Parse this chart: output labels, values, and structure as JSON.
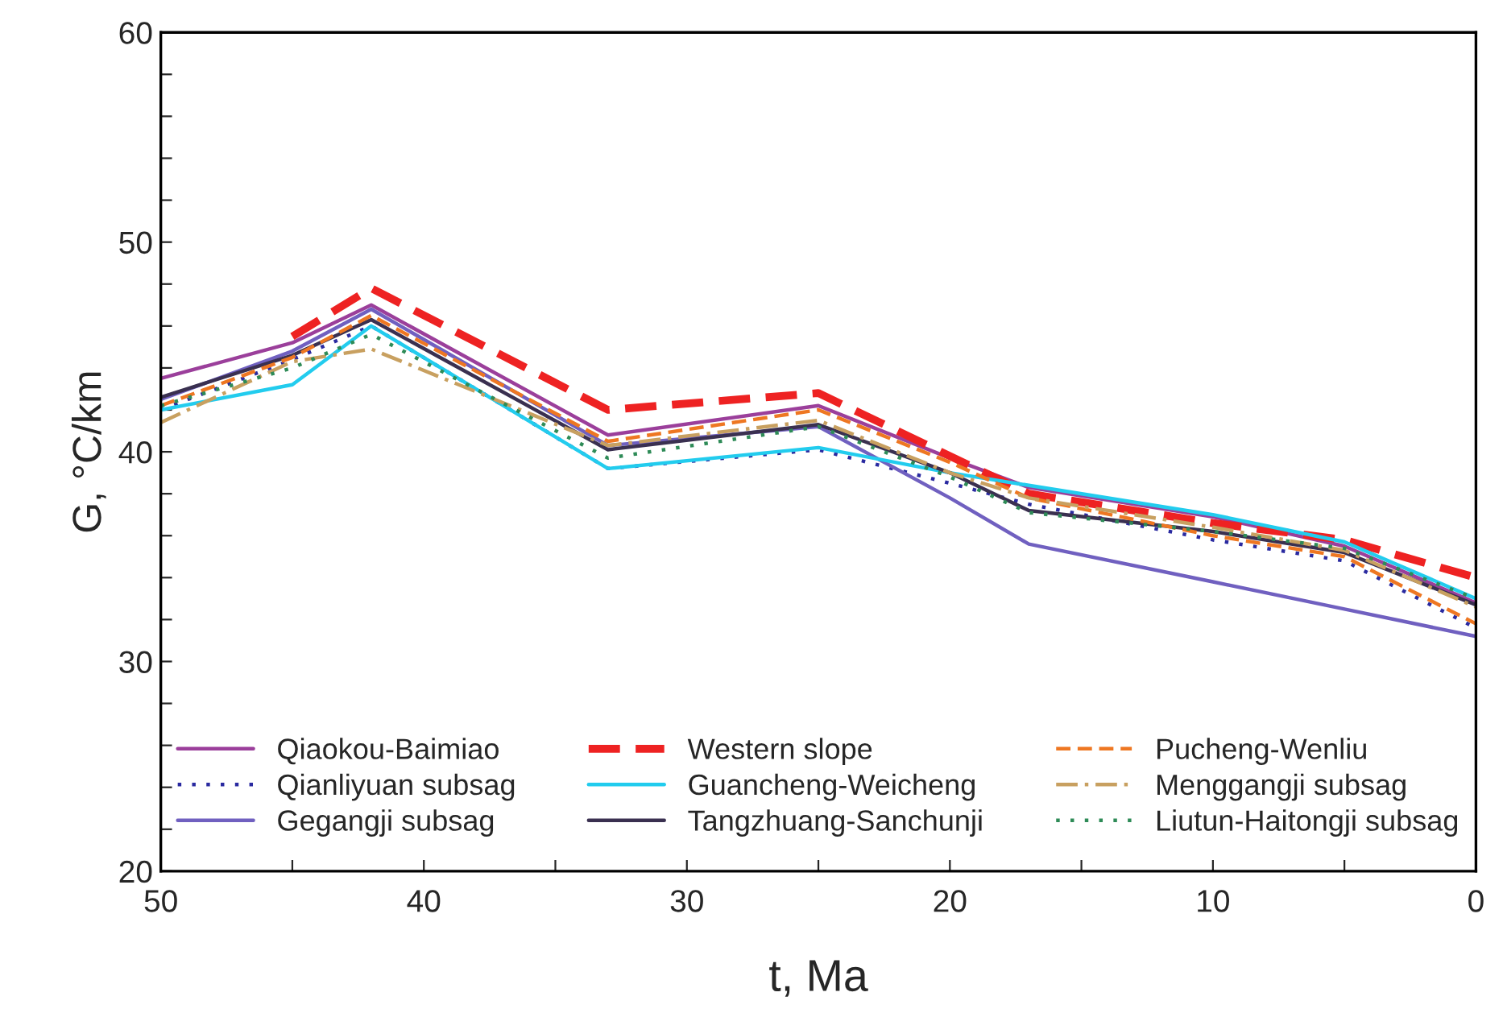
{
  "chart_data": {
    "type": "line",
    "xlabel": "t, Ma",
    "ylabel": "G, °C/km",
    "x": [
      50,
      45,
      42,
      33,
      25,
      20,
      17,
      10,
      5,
      0
    ],
    "xlim": [
      50,
      0
    ],
    "ylim": [
      20,
      60
    ],
    "xticks": [
      50,
      {
        "value": 45,
        "label": null
      },
      40,
      {
        "value": 35,
        "label": null
      },
      30,
      {
        "value": 25,
        "label": null
      },
      20,
      {
        "value": 15,
        "label": null
      },
      10,
      {
        "value": 5,
        "label": null
      },
      0
    ],
    "yticks": [
      20,
      {
        "value": 22,
        "label": null
      },
      {
        "value": 24,
        "label": null
      },
      {
        "value": 26,
        "label": null
      },
      {
        "value": 28,
        "label": null
      },
      30,
      {
        "value": 32,
        "label": null
      },
      {
        "value": 34,
        "label": null
      },
      {
        "value": 36,
        "label": null
      },
      {
        "value": 38,
        "label": null
      },
      40,
      {
        "value": 42,
        "label": null
      },
      {
        "value": 44,
        "label": null
      },
      {
        "value": 46,
        "label": null
      },
      {
        "value": 48,
        "label": null
      },
      50,
      {
        "value": 52,
        "label": null
      },
      {
        "value": 54,
        "label": null
      },
      {
        "value": 56,
        "label": null
      },
      {
        "value": 58,
        "label": null
      },
      60
    ],
    "grid": false,
    "legend": "bottom",
    "marker": "none",
    "series": [
      {
        "name": "Qiaokou-Baimiao",
        "color": "#9b3f9b",
        "line_style": "solid",
        "values": [
          43.5,
          45.2,
          47.0,
          40.8,
          42.2,
          39.7,
          38.3,
          36.9,
          35.5,
          32.8
        ]
      },
      {
        "name": "Qianliyuan subsag",
        "color": "#2a2aa0",
        "line_style": "dotted",
        "values": [
          42.0,
          44.4,
          46.0,
          39.2,
          40.1,
          38.5,
          37.5,
          35.8,
          34.8,
          31.6
        ]
      },
      {
        "name": "Gegangji subsag",
        "color": "#7060c0",
        "line_style": "solid",
        "values": [
          42.5,
          44.8,
          46.8,
          40.3,
          41.2,
          37.8,
          35.6,
          33.8,
          32.5,
          31.2
        ]
      },
      {
        "name": "Western slope",
        "color": "#ee2222",
        "line_style": "dashed",
        "values": [
          null,
          45.5,
          47.8,
          42.0,
          42.8,
          39.8,
          38.0,
          36.6,
          35.8,
          34.0
        ]
      },
      {
        "name": "Guancheng-Weicheng",
        "color": "#22ccee",
        "line_style": "solid",
        "values": [
          42.0,
          43.2,
          46.0,
          39.2,
          40.2,
          39.0,
          38.4,
          37.0,
          35.7,
          33.0
        ]
      },
      {
        "name": "Tangzhuang-Sanchunji",
        "color": "#3a3050",
        "line_style": "solid",
        "values": [
          42.6,
          44.6,
          46.3,
          40.1,
          41.3,
          39.0,
          37.2,
          36.2,
          35.2,
          32.7
        ]
      },
      {
        "name": "Pucheng-Wenliu",
        "color": "#ee7722",
        "line_style": "dashed",
        "values": [
          42.2,
          44.5,
          46.5,
          40.5,
          42.0,
          39.5,
          37.8,
          36.0,
          35.0,
          31.8
        ]
      },
      {
        "name": "Menggangji subsag",
        "color": "#c8a060",
        "line_style": "dashdot",
        "values": [
          41.4,
          44.3,
          44.9,
          40.3,
          41.5,
          39.0,
          37.8,
          36.4,
          35.3,
          32.6
        ]
      },
      {
        "name": "Liutun-Haitongji subsag",
        "color": "#2e8b57",
        "line_style": "dotted",
        "values": [
          42.2,
          44.0,
          45.6,
          39.7,
          41.2,
          38.8,
          37.1,
          36.2,
          35.4,
          33.0
        ]
      }
    ]
  }
}
